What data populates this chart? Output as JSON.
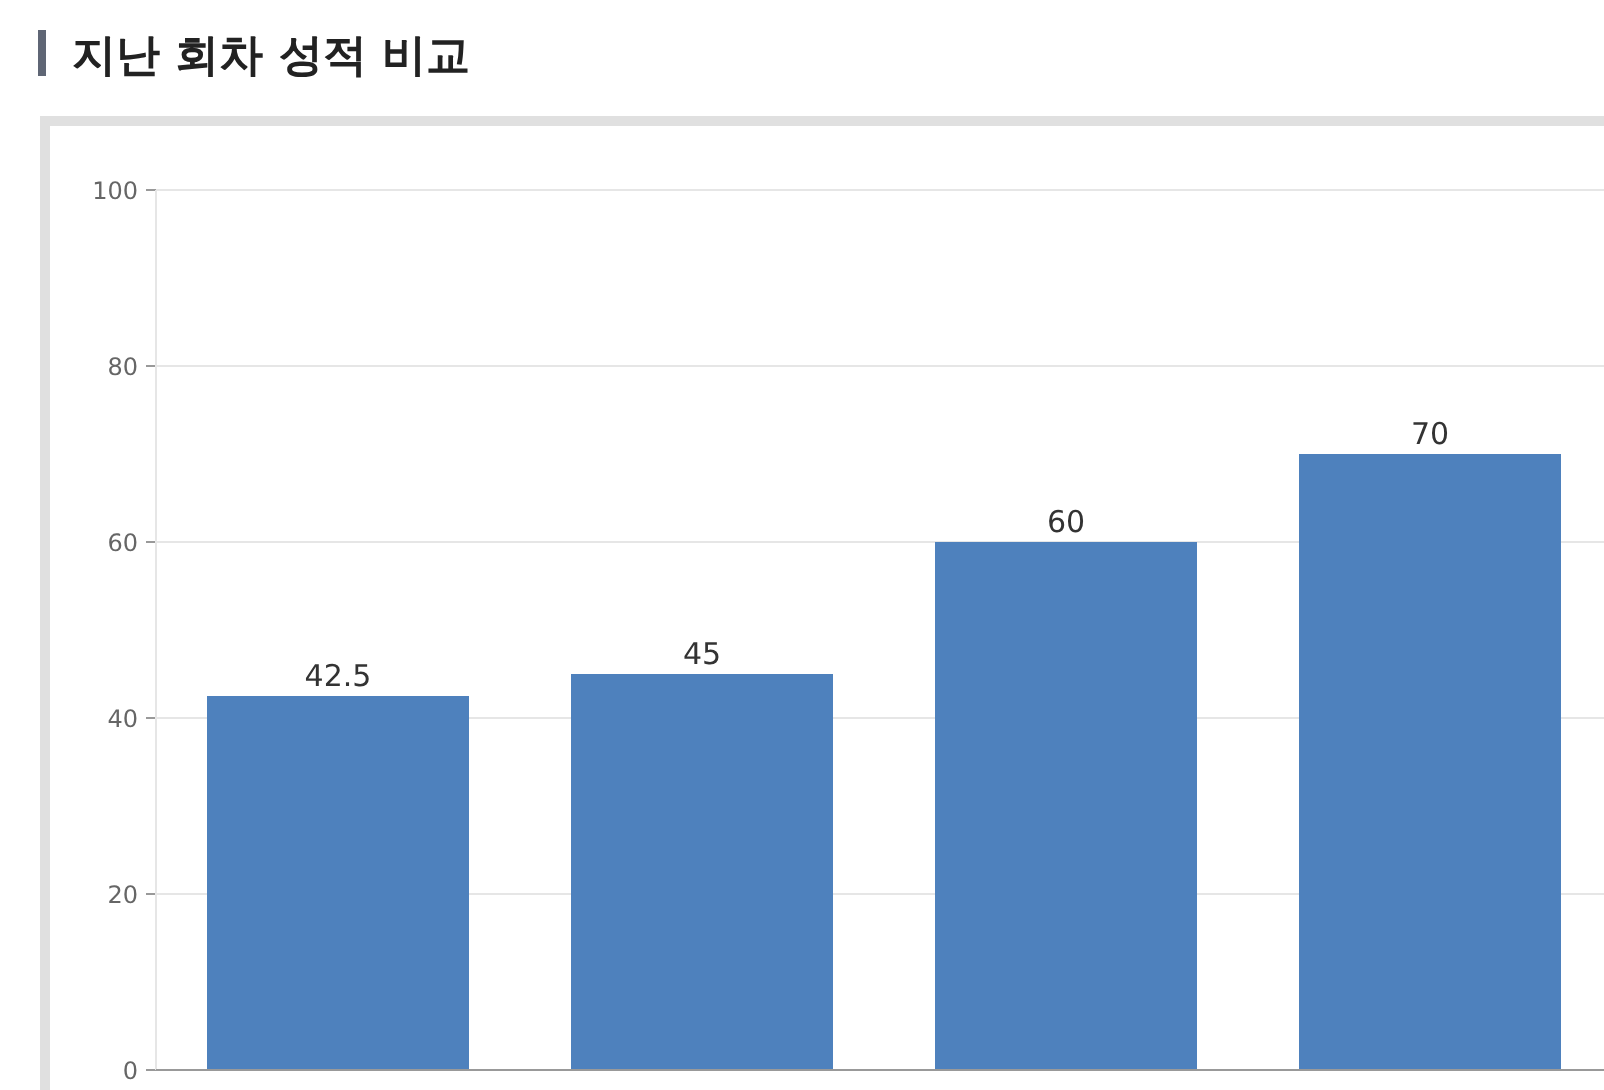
{
  "chart_data": {
    "type": "bar",
    "title": "지난 회차 성적 비교",
    "categories": [
      null,
      null,
      null,
      null
    ],
    "values": [
      42.5,
      45,
      60,
      70
    ],
    "color": "#4e81bd",
    "ylim": [
      0,
      100
    ],
    "yticks": [
      0,
      20,
      40,
      60,
      80,
      100
    ],
    "grid": "y",
    "data_labels": true,
    "tick_labels": "y"
  }
}
